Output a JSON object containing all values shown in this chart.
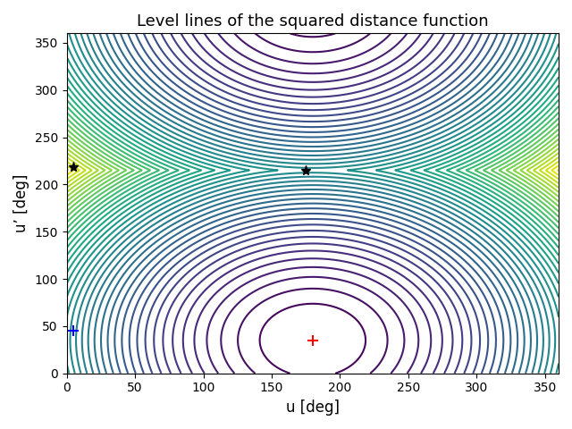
{
  "title": "Level lines of the squared distance function",
  "xlabel": "u [deg]",
  "ylabel": "u’ [deg]",
  "xlim": [
    0,
    360
  ],
  "ylim": [
    0,
    360
  ],
  "xticks": [
    0,
    50,
    100,
    150,
    200,
    250,
    300,
    350
  ],
  "yticks": [
    0,
    50,
    100,
    150,
    200,
    250,
    300,
    350
  ],
  "red_cross": [
    180,
    35
  ],
  "blue_cross": [
    5,
    45
  ],
  "star1": [
    5,
    218
  ],
  "star2": [
    175,
    215
  ],
  "n_contours": 60,
  "colormap": "viridis",
  "grid_n": 600
}
